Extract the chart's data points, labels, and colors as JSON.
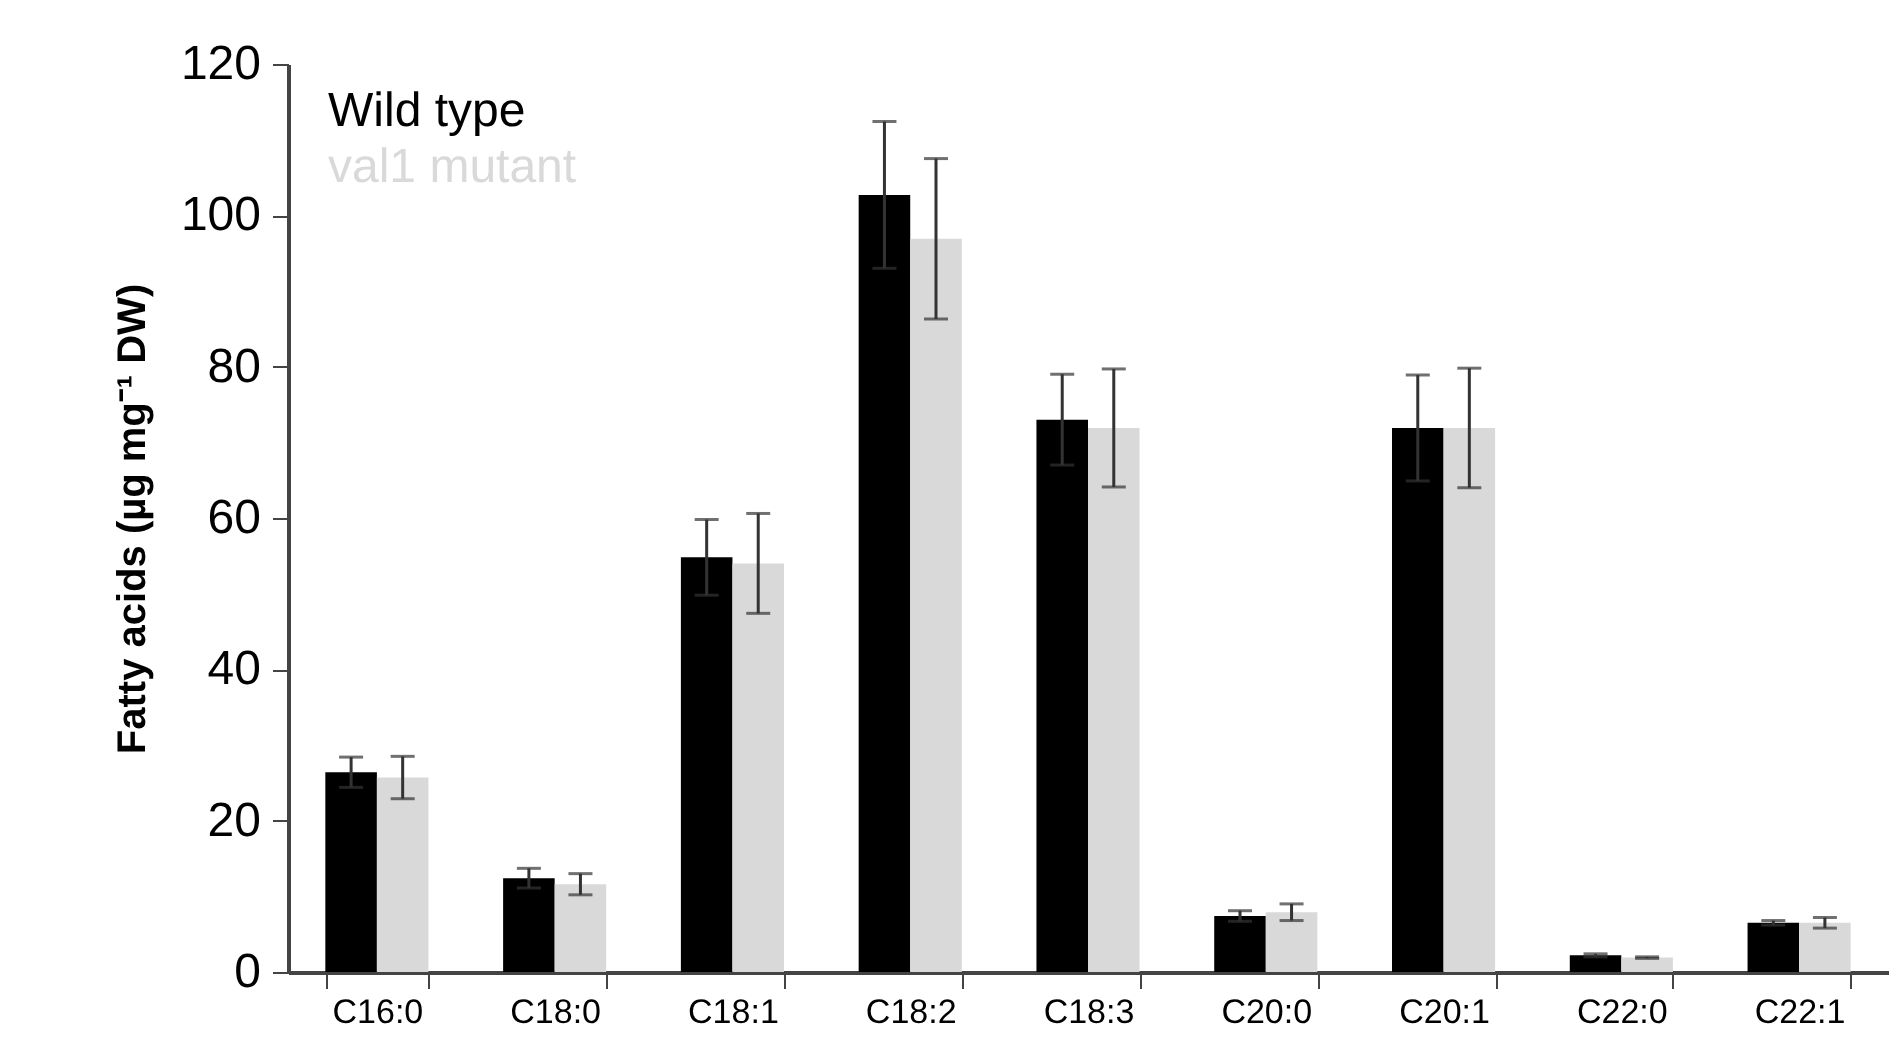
{
  "chart_data": {
    "type": "bar",
    "ylabel": "Fatty acids (µg mg⁻¹ DW)",
    "categories": [
      "C16:0",
      "C18:0",
      "C18:1",
      "C18:2",
      "C18:3",
      "C20:0",
      "C20:1",
      "C22:0",
      "C22:1"
    ],
    "series": [
      {
        "name": "Wild type",
        "color": "#000000",
        "values": [
          26.4,
          12.4,
          54.8,
          102.7,
          73.0,
          7.4,
          71.9,
          2.2,
          6.5
        ],
        "errors": [
          2.0,
          1.3,
          5.0,
          9.7,
          6.0,
          0.7,
          7.0,
          0.2,
          0.3
        ]
      },
      {
        "name": "val1 mutant",
        "color": "#d9d9d9",
        "values": [
          25.7,
          11.6,
          54.0,
          96.9,
          71.9,
          7.9,
          71.9,
          1.9,
          6.5
        ],
        "errors": [
          2.8,
          1.4,
          6.6,
          10.6,
          7.8,
          1.1,
          7.9,
          0.1,
          0.7
        ]
      }
    ],
    "ylim": [
      0,
      120
    ],
    "yticks": [
      0,
      20,
      40,
      60,
      80,
      100,
      120
    ],
    "grid": false,
    "legend": "top left"
  }
}
